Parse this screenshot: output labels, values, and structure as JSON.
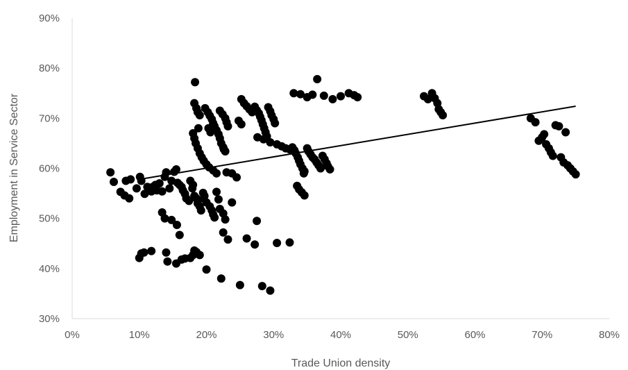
{
  "chart_data": {
    "type": "scatter",
    "title": "",
    "xlabel": "Trade Union density",
    "ylabel": "Employment in Service Sector",
    "xlim": [
      0,
      0.8
    ],
    "ylim": [
      0.3,
      0.9
    ],
    "x_ticks": [
      "0%",
      "10%",
      "20%",
      "30%",
      "40%",
      "50%",
      "60%",
      "70%",
      "80%"
    ],
    "y_ticks": [
      "30%",
      "40%",
      "50%",
      "60%",
      "70%",
      "80%",
      "90%"
    ],
    "grid": false,
    "legend": "none",
    "marker_color": "#000000",
    "trendline": {
      "type": "linear",
      "x": [
        0.1,
        0.75
      ],
      "y": [
        0.578,
        0.724
      ]
    },
    "points": [
      [
        0.057,
        0.592
      ],
      [
        0.062,
        0.573
      ],
      [
        0.072,
        0.553
      ],
      [
        0.078,
        0.546
      ],
      [
        0.08,
        0.575
      ],
      [
        0.085,
        0.54
      ],
      [
        0.087,
        0.578
      ],
      [
        0.096,
        0.56
      ],
      [
        0.101,
        0.583
      ],
      [
        0.103,
        0.575
      ],
      [
        0.108,
        0.549
      ],
      [
        0.112,
        0.563
      ],
      [
        0.118,
        0.554
      ],
      [
        0.12,
        0.563
      ],
      [
        0.124,
        0.567
      ],
      [
        0.126,
        0.556
      ],
      [
        0.13,
        0.57
      ],
      [
        0.134,
        0.554
      ],
      [
        0.138,
        0.583
      ],
      [
        0.14,
        0.592
      ],
      [
        0.145,
        0.56
      ],
      [
        0.148,
        0.575
      ],
      [
        0.152,
        0.593
      ],
      [
        0.155,
        0.598
      ],
      [
        0.157,
        0.571
      ],
      [
        0.16,
        0.567
      ],
      [
        0.163,
        0.563
      ],
      [
        0.165,
        0.556
      ],
      [
        0.168,
        0.549
      ],
      [
        0.17,
        0.54
      ],
      [
        0.174,
        0.535
      ],
      [
        0.176,
        0.575
      ],
      [
        0.179,
        0.56
      ],
      [
        0.18,
        0.567
      ],
      [
        0.182,
        0.545
      ],
      [
        0.185,
        0.54
      ],
      [
        0.187,
        0.53
      ],
      [
        0.19,
        0.524
      ],
      [
        0.192,
        0.516
      ],
      [
        0.195,
        0.551
      ],
      [
        0.197,
        0.545
      ],
      [
        0.2,
        0.532
      ],
      [
        0.205,
        0.524
      ],
      [
        0.208,
        0.516
      ],
      [
        0.21,
        0.508
      ],
      [
        0.212,
        0.502
      ],
      [
        0.215,
        0.553
      ],
      [
        0.218,
        0.538
      ],
      [
        0.22,
        0.519
      ],
      [
        0.225,
        0.51
      ],
      [
        0.228,
        0.498
      ],
      [
        0.1,
        0.421
      ],
      [
        0.103,
        0.43
      ],
      [
        0.107,
        0.432
      ],
      [
        0.118,
        0.435
      ],
      [
        0.134,
        0.512
      ],
      [
        0.138,
        0.5
      ],
      [
        0.14,
        0.432
      ],
      [
        0.142,
        0.414
      ],
      [
        0.148,
        0.497
      ],
      [
        0.155,
        0.41
      ],
      [
        0.156,
        0.487
      ],
      [
        0.16,
        0.467
      ],
      [
        0.163,
        0.418
      ],
      [
        0.168,
        0.42
      ],
      [
        0.176,
        0.421
      ],
      [
        0.18,
        0.427
      ],
      [
        0.182,
        0.436
      ],
      [
        0.185,
        0.433
      ],
      [
        0.19,
        0.427
      ],
      [
        0.196,
        0.54
      ],
      [
        0.2,
        0.398
      ],
      [
        0.222,
        0.38
      ],
      [
        0.225,
        0.472
      ],
      [
        0.232,
        0.458
      ],
      [
        0.238,
        0.532
      ],
      [
        0.25,
        0.367
      ],
      [
        0.26,
        0.46
      ],
      [
        0.272,
        0.448
      ],
      [
        0.275,
        0.495
      ],
      [
        0.283,
        0.365
      ],
      [
        0.295,
        0.356
      ],
      [
        0.305,
        0.451
      ],
      [
        0.324,
        0.452
      ],
      [
        0.183,
        0.772
      ],
      [
        0.182,
        0.73
      ],
      [
        0.185,
        0.72
      ],
      [
        0.187,
        0.712
      ],
      [
        0.19,
        0.706
      ],
      [
        0.188,
        0.68
      ],
      [
        0.18,
        0.67
      ],
      [
        0.182,
        0.66
      ],
      [
        0.184,
        0.65
      ],
      [
        0.187,
        0.64
      ],
      [
        0.19,
        0.63
      ],
      [
        0.193,
        0.622
      ],
      [
        0.196,
        0.615
      ],
      [
        0.2,
        0.608
      ],
      [
        0.204,
        0.602
      ],
      [
        0.21,
        0.596
      ],
      [
        0.215,
        0.59
      ],
      [
        0.198,
        0.72
      ],
      [
        0.202,
        0.712
      ],
      [
        0.205,
        0.705
      ],
      [
        0.208,
        0.698
      ],
      [
        0.21,
        0.69
      ],
      [
        0.212,
        0.684
      ],
      [
        0.215,
        0.676
      ],
      [
        0.218,
        0.668
      ],
      [
        0.22,
        0.66
      ],
      [
        0.222,
        0.65
      ],
      [
        0.225,
        0.642
      ],
      [
        0.228,
        0.634
      ],
      [
        0.203,
        0.68
      ],
      [
        0.206,
        0.672
      ],
      [
        0.22,
        0.715
      ],
      [
        0.224,
        0.708
      ],
      [
        0.228,
        0.7
      ],
      [
        0.23,
        0.692
      ],
      [
        0.232,
        0.684
      ],
      [
        0.226,
        0.638
      ],
      [
        0.23,
        0.592
      ],
      [
        0.238,
        0.59
      ],
      [
        0.245,
        0.582
      ],
      [
        0.248,
        0.695
      ],
      [
        0.252,
        0.688
      ],
      [
        0.252,
        0.738
      ],
      [
        0.256,
        0.73
      ],
      [
        0.26,
        0.724
      ],
      [
        0.264,
        0.718
      ],
      [
        0.268,
        0.712
      ],
      [
        0.272,
        0.723
      ],
      [
        0.275,
        0.716
      ],
      [
        0.278,
        0.71
      ],
      [
        0.28,
        0.703
      ],
      [
        0.282,
        0.696
      ],
      [
        0.284,
        0.688
      ],
      [
        0.286,
        0.68
      ],
      [
        0.288,
        0.672
      ],
      [
        0.29,
        0.664
      ],
      [
        0.292,
        0.722
      ],
      [
        0.295,
        0.714
      ],
      [
        0.297,
        0.706
      ],
      [
        0.3,
        0.698
      ],
      [
        0.302,
        0.69
      ],
      [
        0.276,
        0.662
      ],
      [
        0.285,
        0.658
      ],
      [
        0.295,
        0.652
      ],
      [
        0.305,
        0.648
      ],
      [
        0.312,
        0.644
      ],
      [
        0.318,
        0.64
      ],
      [
        0.324,
        0.638
      ],
      [
        0.328,
        0.642
      ],
      [
        0.331,
        0.636
      ],
      [
        0.333,
        0.63
      ],
      [
        0.336,
        0.622
      ],
      [
        0.338,
        0.615
      ],
      [
        0.34,
        0.608
      ],
      [
        0.343,
        0.6
      ],
      [
        0.346,
        0.594
      ],
      [
        0.35,
        0.64
      ],
      [
        0.352,
        0.634
      ],
      [
        0.355,
        0.628
      ],
      [
        0.358,
        0.622
      ],
      [
        0.361,
        0.618
      ],
      [
        0.364,
        0.612
      ],
      [
        0.367,
        0.606
      ],
      [
        0.37,
        0.6
      ],
      [
        0.373,
        0.625
      ],
      [
        0.376,
        0.618
      ],
      [
        0.379,
        0.61
      ],
      [
        0.381,
        0.604
      ],
      [
        0.384,
        0.598
      ],
      [
        0.345,
        0.59
      ],
      [
        0.335,
        0.565
      ],
      [
        0.338,
        0.558
      ],
      [
        0.342,
        0.552
      ],
      [
        0.346,
        0.546
      ],
      [
        0.33,
        0.75
      ],
      [
        0.34,
        0.748
      ],
      [
        0.35,
        0.742
      ],
      [
        0.358,
        0.747
      ],
      [
        0.365,
        0.778
      ],
      [
        0.375,
        0.745
      ],
      [
        0.388,
        0.738
      ],
      [
        0.4,
        0.744
      ],
      [
        0.412,
        0.75
      ],
      [
        0.42,
        0.746
      ],
      [
        0.425,
        0.742
      ],
      [
        0.524,
        0.744
      ],
      [
        0.53,
        0.738
      ],
      [
        0.536,
        0.75
      ],
      [
        0.54,
        0.74
      ],
      [
        0.544,
        0.73
      ],
      [
        0.546,
        0.718
      ],
      [
        0.549,
        0.712
      ],
      [
        0.552,
        0.706
      ],
      [
        0.683,
        0.7
      ],
      [
        0.69,
        0.692
      ],
      [
        0.695,
        0.655
      ],
      [
        0.7,
        0.662
      ],
      [
        0.703,
        0.668
      ],
      [
        0.706,
        0.648
      ],
      [
        0.71,
        0.64
      ],
      [
        0.713,
        0.632
      ],
      [
        0.716,
        0.625
      ],
      [
        0.72,
        0.686
      ],
      [
        0.725,
        0.684
      ],
      [
        0.728,
        0.622
      ],
      [
        0.732,
        0.612
      ],
      [
        0.735,
        0.672
      ],
      [
        0.738,
        0.606
      ],
      [
        0.742,
        0.6
      ],
      [
        0.746,
        0.594
      ],
      [
        0.75,
        0.588
      ]
    ]
  }
}
